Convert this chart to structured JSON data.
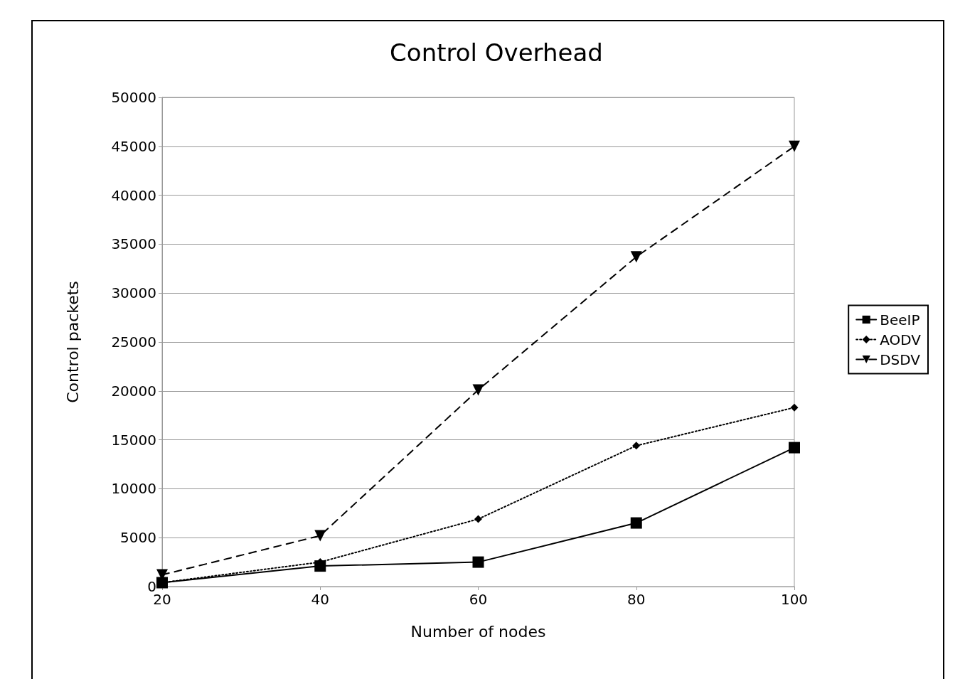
{
  "chart_data": {
    "type": "line",
    "title": "Control Overhead",
    "xlabel": "Number of nodes",
    "ylabel": "Control packets",
    "x": [
      20,
      40,
      60,
      80,
      100
    ],
    "series": [
      {
        "name": "BeeIP",
        "color": "#000000",
        "marker": "square",
        "line_style": "solid",
        "values": [
          400,
          2100,
          2500,
          6500,
          14200
        ]
      },
      {
        "name": "AODV",
        "color": "#000000",
        "marker": "diamond",
        "line_style": "dotted",
        "values": [
          400,
          2500,
          6900,
          14400,
          18300
        ]
      },
      {
        "name": "DSDV",
        "color": "#000000",
        "marker": "triangle",
        "line_style": "dashed",
        "values": [
          1200,
          5200,
          20100,
          33700,
          45000
        ]
      }
    ],
    "xlim": [
      20,
      100
    ],
    "xticks": [
      20,
      40,
      60,
      80,
      100
    ],
    "ylim": [
      0,
      50000
    ],
    "yticks": [
      0,
      5000,
      10000,
      15000,
      20000,
      25000,
      30000,
      35000,
      40000,
      45000,
      50000
    ],
    "grid": "y",
    "legend": "right"
  }
}
